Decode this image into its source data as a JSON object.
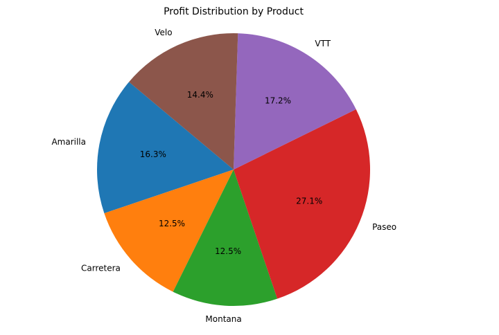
{
  "chart_data": {
    "type": "pie",
    "title": "Profit Distribution by Product",
    "categories": [
      "Amarilla",
      "Carretera",
      "Montana",
      "Paseo",
      "VTT",
      "Velo"
    ],
    "values": [
      16.3,
      12.5,
      12.5,
      27.1,
      17.2,
      14.4
    ],
    "percent_labels": [
      "16.3%",
      "12.5%",
      "12.5%",
      "27.1%",
      "17.2%",
      "14.4%"
    ],
    "colors": [
      "#1f77b4",
      "#ff7f0e",
      "#2ca02c",
      "#d62728",
      "#9467bd",
      "#8c564b"
    ],
    "start_angle_deg": 140,
    "direction": "counterclockwise",
    "legend": "none"
  }
}
